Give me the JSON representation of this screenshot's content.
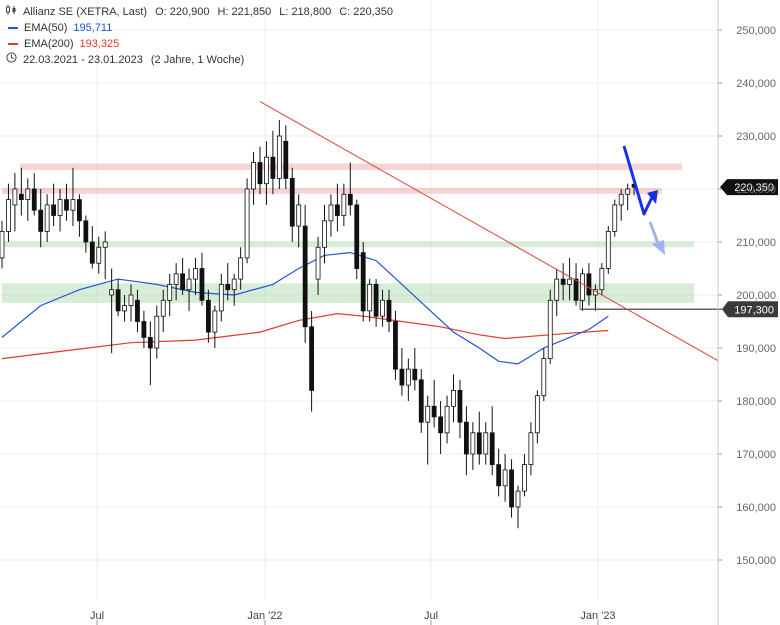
{
  "legend": {
    "instrument": "Allianz SE (XETRA, Last)",
    "open_label": "O:",
    "open": "220,900",
    "high_label": "H:",
    "high": "221,850",
    "low_label": "L:",
    "low": "218,800",
    "close_label": "C:",
    "close": "220,350",
    "ema50_label": "EMA(50)",
    "ema50_value": "195,711",
    "ema200_label": "EMA(200)",
    "ema200_value": "193,325",
    "range": "22.03.2021 - 23.01.2023",
    "range_note": "(2 Jahre, 1 Woche)",
    "ema50_color": "#2155d6",
    "ema200_color": "#e0392e"
  },
  "price_tags": {
    "last": "220,350",
    "marker": "197,300"
  },
  "chart_data": {
    "type": "candlestick",
    "title": "Allianz SE (XETRA, Last)",
    "period": "22.03.2021 - 23.01.2023",
    "interval": "weekly",
    "ylim": [
      144000,
      254000
    ],
    "y_ticks": [
      150000,
      160000,
      170000,
      180000,
      190000,
      200000,
      210000,
      220000,
      230000,
      240000,
      250000
    ],
    "y_tick_labels": [
      "150,000",
      "160,000",
      "170,000",
      "180,000",
      "190,000",
      "200,000",
      "210,000",
      "220,000",
      "230,000",
      "240,000",
      "250,000"
    ],
    "x_ticks": [
      "Jul",
      "Jan '22",
      "Jul",
      "Jan '23"
    ],
    "last_close": 220350,
    "marked_level": 197300,
    "candles": [
      {
        "o": 207,
        "h": 214,
        "l": 205,
        "c": 212
      },
      {
        "o": 212,
        "h": 221,
        "l": 210,
        "c": 218
      },
      {
        "o": 217,
        "h": 223,
        "l": 212,
        "c": 220
      },
      {
        "o": 219,
        "h": 224,
        "l": 215,
        "c": 218
      },
      {
        "o": 218,
        "h": 222,
        "l": 214,
        "c": 220
      },
      {
        "o": 220,
        "h": 223,
        "l": 215,
        "c": 216
      },
      {
        "o": 216,
        "h": 220,
        "l": 209,
        "c": 212
      },
      {
        "o": 212,
        "h": 219,
        "l": 210,
        "c": 217
      },
      {
        "o": 217,
        "h": 221,
        "l": 213,
        "c": 215
      },
      {
        "o": 215,
        "h": 220,
        "l": 212,
        "c": 218
      },
      {
        "o": 218,
        "h": 221,
        "l": 214,
        "c": 216
      },
      {
        "o": 216,
        "h": 224,
        "l": 213,
        "c": 218
      },
      {
        "o": 218,
        "h": 219,
        "l": 211,
        "c": 214
      },
      {
        "o": 214,
        "h": 215,
        "l": 208,
        "c": 210
      },
      {
        "o": 210,
        "h": 213,
        "l": 205,
        "c": 206
      },
      {
        "o": 206,
        "h": 211,
        "l": 204,
        "c": 209
      },
      {
        "o": 209,
        "h": 212,
        "l": 203,
        "c": 210
      },
      {
        "o": 200,
        "h": 205,
        "l": 189,
        "c": 201
      },
      {
        "o": 201,
        "h": 203,
        "l": 196,
        "c": 197
      },
      {
        "o": 197,
        "h": 200,
        "l": 195,
        "c": 198
      },
      {
        "o": 198,
        "h": 202,
        "l": 195,
        "c": 200
      },
      {
        "o": 199,
        "h": 201,
        "l": 193,
        "c": 195
      },
      {
        "o": 195,
        "h": 197,
        "l": 190,
        "c": 192
      },
      {
        "o": 192,
        "h": 195,
        "l": 183,
        "c": 190
      },
      {
        "o": 190,
        "h": 198,
        "l": 188,
        "c": 196
      },
      {
        "o": 196,
        "h": 201,
        "l": 193,
        "c": 199
      },
      {
        "o": 199,
        "h": 204,
        "l": 196,
        "c": 202
      },
      {
        "o": 202,
        "h": 206,
        "l": 199,
        "c": 204
      },
      {
        "o": 204,
        "h": 207,
        "l": 200,
        "c": 201
      },
      {
        "o": 201,
        "h": 205,
        "l": 197,
        "c": 203
      },
      {
        "o": 203,
        "h": 207,
        "l": 200,
        "c": 205
      },
      {
        "o": 205,
        "h": 208,
        "l": 198,
        "c": 199
      },
      {
        "o": 199,
        "h": 201,
        "l": 191,
        "c": 193
      },
      {
        "o": 193,
        "h": 198,
        "l": 190,
        "c": 197
      },
      {
        "o": 197,
        "h": 204,
        "l": 195,
        "c": 202
      },
      {
        "o": 202,
        "h": 206,
        "l": 199,
        "c": 201
      },
      {
        "o": 201,
        "h": 204,
        "l": 198,
        "c": 203
      },
      {
        "o": 203,
        "h": 209,
        "l": 201,
        "c": 207
      },
      {
        "o": 207,
        "h": 222,
        "l": 206,
        "c": 220
      },
      {
        "o": 220,
        "h": 227,
        "l": 217,
        "c": 225
      },
      {
        "o": 225,
        "h": 228,
        "l": 219,
        "c": 221
      },
      {
        "o": 221,
        "h": 229,
        "l": 217,
        "c": 226
      },
      {
        "o": 226,
        "h": 231,
        "l": 219,
        "c": 222
      },
      {
        "o": 222,
        "h": 233,
        "l": 220,
        "c": 230
      },
      {
        "o": 229,
        "h": 232,
        "l": 220,
        "c": 222
      },
      {
        "o": 222,
        "h": 224,
        "l": 210,
        "c": 213
      },
      {
        "o": 213,
        "h": 219,
        "l": 209,
        "c": 217
      },
      {
        "o": 213,
        "h": 217,
        "l": 191,
        "c": 194
      },
      {
        "o": 194,
        "h": 197,
        "l": 178,
        "c": 182
      },
      {
        "o": 203,
        "h": 211,
        "l": 200,
        "c": 209
      },
      {
        "o": 209,
        "h": 217,
        "l": 206,
        "c": 214
      },
      {
        "o": 214,
        "h": 219,
        "l": 211,
        "c": 217
      },
      {
        "o": 217,
        "h": 221,
        "l": 212,
        "c": 215
      },
      {
        "o": 215,
        "h": 221,
        "l": 213,
        "c": 219
      },
      {
        "o": 219,
        "h": 225,
        "l": 215,
        "c": 217
      },
      {
        "o": 217,
        "h": 218,
        "l": 203,
        "c": 205
      },
      {
        "o": 208,
        "h": 210,
        "l": 195,
        "c": 197
      },
      {
        "o": 197,
        "h": 203,
        "l": 195,
        "c": 202
      },
      {
        "o": 202,
        "h": 203,
        "l": 194,
        "c": 196
      },
      {
        "o": 196,
        "h": 201,
        "l": 194,
        "c": 199
      },
      {
        "o": 199,
        "h": 201,
        "l": 193,
        "c": 195
      },
      {
        "o": 195,
        "h": 197,
        "l": 184,
        "c": 186
      },
      {
        "o": 186,
        "h": 190,
        "l": 181,
        "c": 183
      },
      {
        "o": 183,
        "h": 188,
        "l": 180,
        "c": 186
      },
      {
        "o": 186,
        "h": 190,
        "l": 182,
        "c": 184
      },
      {
        "o": 184,
        "h": 186,
        "l": 174,
        "c": 176
      },
      {
        "o": 176,
        "h": 181,
        "l": 168,
        "c": 179
      },
      {
        "o": 179,
        "h": 184,
        "l": 175,
        "c": 177
      },
      {
        "o": 177,
        "h": 180,
        "l": 170,
        "c": 174
      },
      {
        "o": 174,
        "h": 181,
        "l": 172,
        "c": 179
      },
      {
        "o": 179,
        "h": 185,
        "l": 176,
        "c": 182
      },
      {
        "o": 182,
        "h": 184,
        "l": 173,
        "c": 176
      },
      {
        "o": 176,
        "h": 179,
        "l": 166,
        "c": 170
      },
      {
        "o": 170,
        "h": 176,
        "l": 167,
        "c": 174
      },
      {
        "o": 174,
        "h": 178,
        "l": 168,
        "c": 170
      },
      {
        "o": 170,
        "h": 176,
        "l": 168,
        "c": 174
      },
      {
        "o": 174,
        "h": 179,
        "l": 166,
        "c": 168
      },
      {
        "o": 168,
        "h": 171,
        "l": 162,
        "c": 164
      },
      {
        "o": 164,
        "h": 170,
        "l": 161,
        "c": 167
      },
      {
        "o": 167,
        "h": 169,
        "l": 158,
        "c": 160
      },
      {
        "o": 160,
        "h": 164,
        "l": 156,
        "c": 163
      },
      {
        "o": 163,
        "h": 170,
        "l": 162,
        "c": 168
      },
      {
        "o": 168,
        "h": 176,
        "l": 166,
        "c": 174
      },
      {
        "o": 174,
        "h": 182,
        "l": 172,
        "c": 181
      },
      {
        "o": 181,
        "h": 190,
        "l": 180,
        "c": 188
      },
      {
        "o": 188,
        "h": 201,
        "l": 187,
        "c": 199
      },
      {
        "o": 199,
        "h": 205,
        "l": 196,
        "c": 203
      },
      {
        "o": 203,
        "h": 206,
        "l": 199,
        "c": 202
      },
      {
        "o": 202,
        "h": 207,
        "l": 199,
        "c": 203
      },
      {
        "o": 203,
        "h": 206,
        "l": 198,
        "c": 199
      },
      {
        "o": 199,
        "h": 205,
        "l": 197,
        "c": 204
      },
      {
        "o": 204,
        "h": 206,
        "l": 198,
        "c": 200
      },
      {
        "o": 200,
        "h": 202,
        "l": 197,
        "c": 201
      },
      {
        "o": 201,
        "h": 206,
        "l": 200,
        "c": 205
      },
      {
        "o": 205,
        "h": 213,
        "l": 204,
        "c": 212
      },
      {
        "o": 212,
        "h": 218,
        "l": 211,
        "c": 217
      },
      {
        "o": 217,
        "h": 220,
        "l": 214,
        "c": 219
      },
      {
        "o": 219,
        "h": 221,
        "l": 216,
        "c": 220
      },
      {
        "o": 220.9,
        "h": 221.85,
        "l": 218.8,
        "c": 220.35
      }
    ],
    "ema50": [
      [
        0,
        192
      ],
      [
        6,
        198
      ],
      [
        12,
        201
      ],
      [
        18,
        203
      ],
      [
        24,
        202
      ],
      [
        30,
        200.5
      ],
      [
        36,
        200
      ],
      [
        42,
        202
      ],
      [
        46,
        205
      ],
      [
        50,
        207.5
      ],
      [
        54,
        208
      ],
      [
        58,
        206.5
      ],
      [
        62,
        202
      ],
      [
        66,
        197.5
      ],
      [
        70,
        193
      ],
      [
        74,
        190
      ],
      [
        77,
        187.5
      ],
      [
        80,
        187
      ],
      [
        84,
        190
      ],
      [
        88,
        192
      ],
      [
        91,
        193.5
      ],
      [
        94,
        196
      ]
    ],
    "ema200": [
      [
        0,
        188
      ],
      [
        10,
        189.5
      ],
      [
        20,
        191
      ],
      [
        30,
        191.5
      ],
      [
        40,
        193
      ],
      [
        46,
        195.2
      ],
      [
        52,
        196.5
      ],
      [
        56,
        196
      ],
      [
        62,
        195
      ],
      [
        68,
        194
      ],
      [
        74,
        192.5
      ],
      [
        78,
        191.8
      ],
      [
        82,
        192.2
      ],
      [
        88,
        192.8
      ],
      [
        94,
        193.3
      ]
    ],
    "horizontal_bands": [
      {
        "from": 223.6,
        "to": 224.8,
        "color": "#e8a0a0"
      },
      {
        "from": 219.1,
        "to": 220.2,
        "color": "#e8a0a0"
      },
      {
        "from": 209.0,
        "to": 210.1,
        "color": "#a8d8a8"
      },
      {
        "from": 198.5,
        "to": 202.2,
        "color": "#a8d8a8"
      }
    ],
    "trendline": [
      [
        260,
        236.5
      ],
      [
        718,
        187.6
      ]
    ],
    "grid": true,
    "legend_position": "top-left"
  }
}
